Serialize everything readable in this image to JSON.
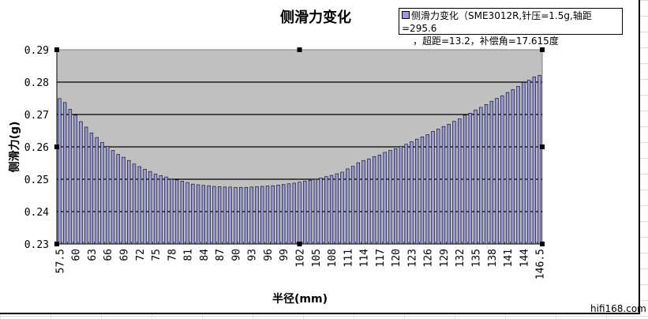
{
  "chart_data": {
    "type": "bar",
    "title": "侧滑力变化",
    "xlabel": "半径(mm)",
    "ylabel": "侧滑力(g)",
    "ylim": [
      0.23,
      0.29
    ],
    "yticks": [
      "0.29",
      "0.28",
      "0.27",
      "0.26",
      "0.25",
      "0.24",
      "0.23"
    ],
    "ytick_values": [
      0.29,
      0.28,
      0.27,
      0.26,
      0.25,
      0.24,
      0.23
    ],
    "grid": true,
    "legend_position": "top-right",
    "series": [
      {
        "name": "侧滑力变化（SME3012R,针压=1.5g,轴距=295.6，超距=13.2，补偿角=17.615度",
        "legend_line1": "侧滑力变化（SME3012R,针压=1.5g,轴距=295.6",
        "legend_line2": "，超距=13.2，补偿角=17.615度",
        "color": "#9999dd",
        "x": [
          57.5,
          58,
          59,
          60,
          61,
          62,
          63,
          64,
          65,
          66,
          67,
          68,
          69,
          70,
          71,
          72,
          73,
          74,
          75,
          76,
          77,
          78,
          79,
          80,
          81,
          82,
          83,
          84,
          85,
          86,
          87,
          88,
          89,
          90,
          91,
          92,
          93,
          94,
          95,
          96,
          97,
          98,
          99,
          100,
          101,
          102,
          103,
          104,
          105,
          106,
          107,
          108,
          109,
          110,
          111,
          112,
          113,
          114,
          115,
          116,
          117,
          118,
          119,
          120,
          121,
          122,
          123,
          124,
          125,
          126,
          127,
          128,
          129,
          130,
          131,
          132,
          133,
          134,
          135,
          136,
          137,
          138,
          139,
          140,
          141,
          142,
          143,
          144,
          145,
          146,
          146.5
        ],
        "values": [
          0.2749,
          0.2737,
          0.2716,
          0.2698,
          0.2678,
          0.2661,
          0.2643,
          0.2629,
          0.2614,
          0.2602,
          0.2589,
          0.2577,
          0.2568,
          0.2558,
          0.2547,
          0.2539,
          0.2531,
          0.2524,
          0.2516,
          0.2511,
          0.2507,
          0.25,
          0.2498,
          0.2494,
          0.249,
          0.2485,
          0.2483,
          0.2481,
          0.248,
          0.2478,
          0.2477,
          0.2476,
          0.2476,
          0.2475,
          0.2475,
          0.2475,
          0.2476,
          0.2477,
          0.2478,
          0.2479,
          0.248,
          0.2482,
          0.2484,
          0.2486,
          0.2488,
          0.2491,
          0.2494,
          0.2497,
          0.25,
          0.2504,
          0.2508,
          0.2512,
          0.2517,
          0.2522,
          0.2532,
          0.254,
          0.2551,
          0.2558,
          0.2563,
          0.257,
          0.2575,
          0.2583,
          0.2589,
          0.2594,
          0.2602,
          0.2608,
          0.2616,
          0.2624,
          0.2631,
          0.2638,
          0.2648,
          0.2655,
          0.2663,
          0.267,
          0.2679,
          0.2687,
          0.2698,
          0.2704,
          0.2714,
          0.2722,
          0.2731,
          0.2741,
          0.275,
          0.2758,
          0.2768,
          0.2777,
          0.2787,
          0.2799,
          0.2806,
          0.2816,
          0.2821
        ]
      }
    ],
    "xtick_labels": [
      "57.5",
      "60",
      "63",
      "66",
      "69",
      "72",
      "75",
      "78",
      "81",
      "84",
      "87",
      "90",
      "93",
      "96",
      "99",
      "102",
      "105",
      "108",
      "111",
      "114",
      "117",
      "120",
      "123",
      "126",
      "129",
      "132",
      "135",
      "138",
      "141",
      "144",
      "146.5"
    ],
    "xtick_indices": [
      0,
      3,
      6,
      9,
      12,
      15,
      18,
      21,
      24,
      27,
      30,
      33,
      36,
      39,
      42,
      45,
      48,
      51,
      54,
      57,
      60,
      63,
      66,
      69,
      72,
      75,
      78,
      81,
      84,
      87,
      90
    ]
  },
  "watermark": "hifi168.com",
  "colors": {
    "plot_bg": "#c0c0c0",
    "bar": "#9999dd"
  }
}
